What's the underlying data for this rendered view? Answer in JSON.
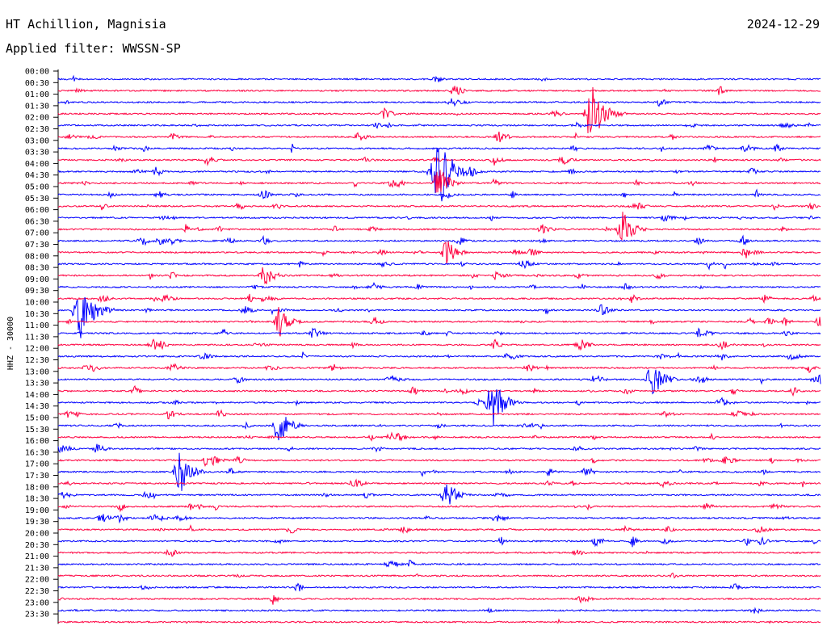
{
  "header": {
    "station": "HT Achillion, Magnisia",
    "date": "2024-12-29",
    "filter": "Applied filter: WWSSN-SP"
  },
  "chart_data": {
    "type": "helicorder",
    "ylabel": "HHZ - 30000",
    "tick_labels": [
      "00:00",
      "00:30",
      "01:00",
      "01:30",
      "02:00",
      "02:30",
      "03:00",
      "03:30",
      "04:00",
      "04:30",
      "05:00",
      "05:30",
      "06:00",
      "06:30",
      "07:00",
      "07:30",
      "08:00",
      "08:30",
      "09:00",
      "09:30",
      "10:00",
      "10:30",
      "11:00",
      "11:30",
      "12:00",
      "12:30",
      "13:00",
      "13:30",
      "14:00",
      "14:30",
      "15:00",
      "15:30",
      "16:00",
      "16:30",
      "17:00",
      "17:30",
      "18:00",
      "18:30",
      "19:00",
      "19:30",
      "20:00",
      "20:30",
      "21:00",
      "21:30",
      "22:00",
      "22:30",
      "23:00",
      "23:30"
    ],
    "trace_colors": [
      "#0000ff",
      "#ff0040"
    ],
    "trace_count": 48,
    "event_note": "",
    "major_events": [
      {
        "row": 1,
        "x_frac": 0.52,
        "amp": 10
      },
      {
        "row": 3,
        "x_frac": 0.7,
        "amp": 40
      },
      {
        "row": 8,
        "x_frac": 0.5,
        "amp": 45
      },
      {
        "row": 9,
        "x_frac": 0.5,
        "amp": 22
      },
      {
        "row": 13,
        "x_frac": 0.74,
        "amp": 26
      },
      {
        "row": 15,
        "x_frac": 0.51,
        "amp": 20
      },
      {
        "row": 17,
        "x_frac": 0.27,
        "amp": 18
      },
      {
        "row": 20,
        "x_frac": 0.03,
        "amp": 40
      },
      {
        "row": 21,
        "x_frac": 0.29,
        "amp": 22
      },
      {
        "row": 26,
        "x_frac": 0.78,
        "amp": 26
      },
      {
        "row": 28,
        "x_frac": 0.57,
        "amp": 32
      },
      {
        "row": 30,
        "x_frac": 0.29,
        "amp": 26
      },
      {
        "row": 34,
        "x_frac": 0.16,
        "amp": 28
      },
      {
        "row": 36,
        "x_frac": 0.51,
        "amp": 22
      }
    ]
  }
}
